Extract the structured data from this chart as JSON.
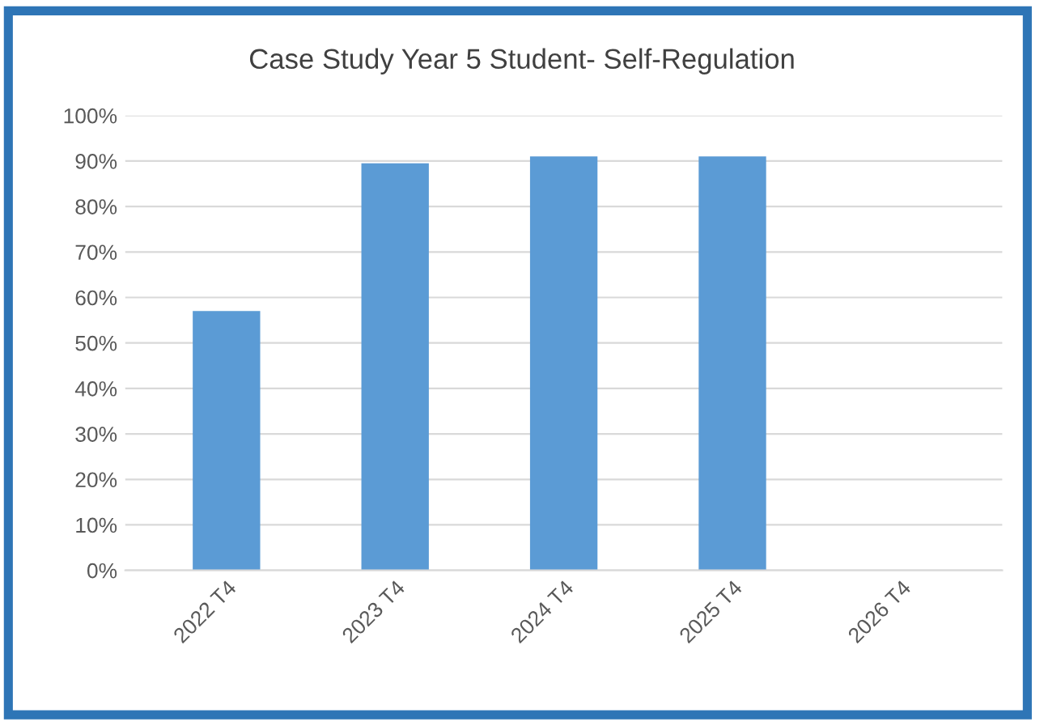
{
  "chart_data": {
    "type": "bar",
    "title": "Case Study Year 5 Student- Self-Regulation",
    "categories": [
      "2022 T4",
      "2023 T4",
      "2024 T4",
      "2025 T4",
      "2026 T4"
    ],
    "values": [
      57,
      89.5,
      91,
      91,
      null
    ],
    "color": "#5b9bd5",
    "ylim": [
      0,
      100
    ],
    "yticks": [
      {
        "value": 0,
        "label": "0%"
      },
      {
        "value": 10,
        "label": "10%"
      },
      {
        "value": 20,
        "label": "20%"
      },
      {
        "value": 30,
        "label": "30%"
      },
      {
        "value": 40,
        "label": "40%"
      },
      {
        "value": 50,
        "label": "50%"
      },
      {
        "value": 60,
        "label": "60%"
      },
      {
        "value": 70,
        "label": "70%"
      },
      {
        "value": 80,
        "label": "80%"
      },
      {
        "value": 90,
        "label": "90%"
      },
      {
        "value": 100,
        "label": "100%"
      }
    ],
    "grid": "y"
  }
}
